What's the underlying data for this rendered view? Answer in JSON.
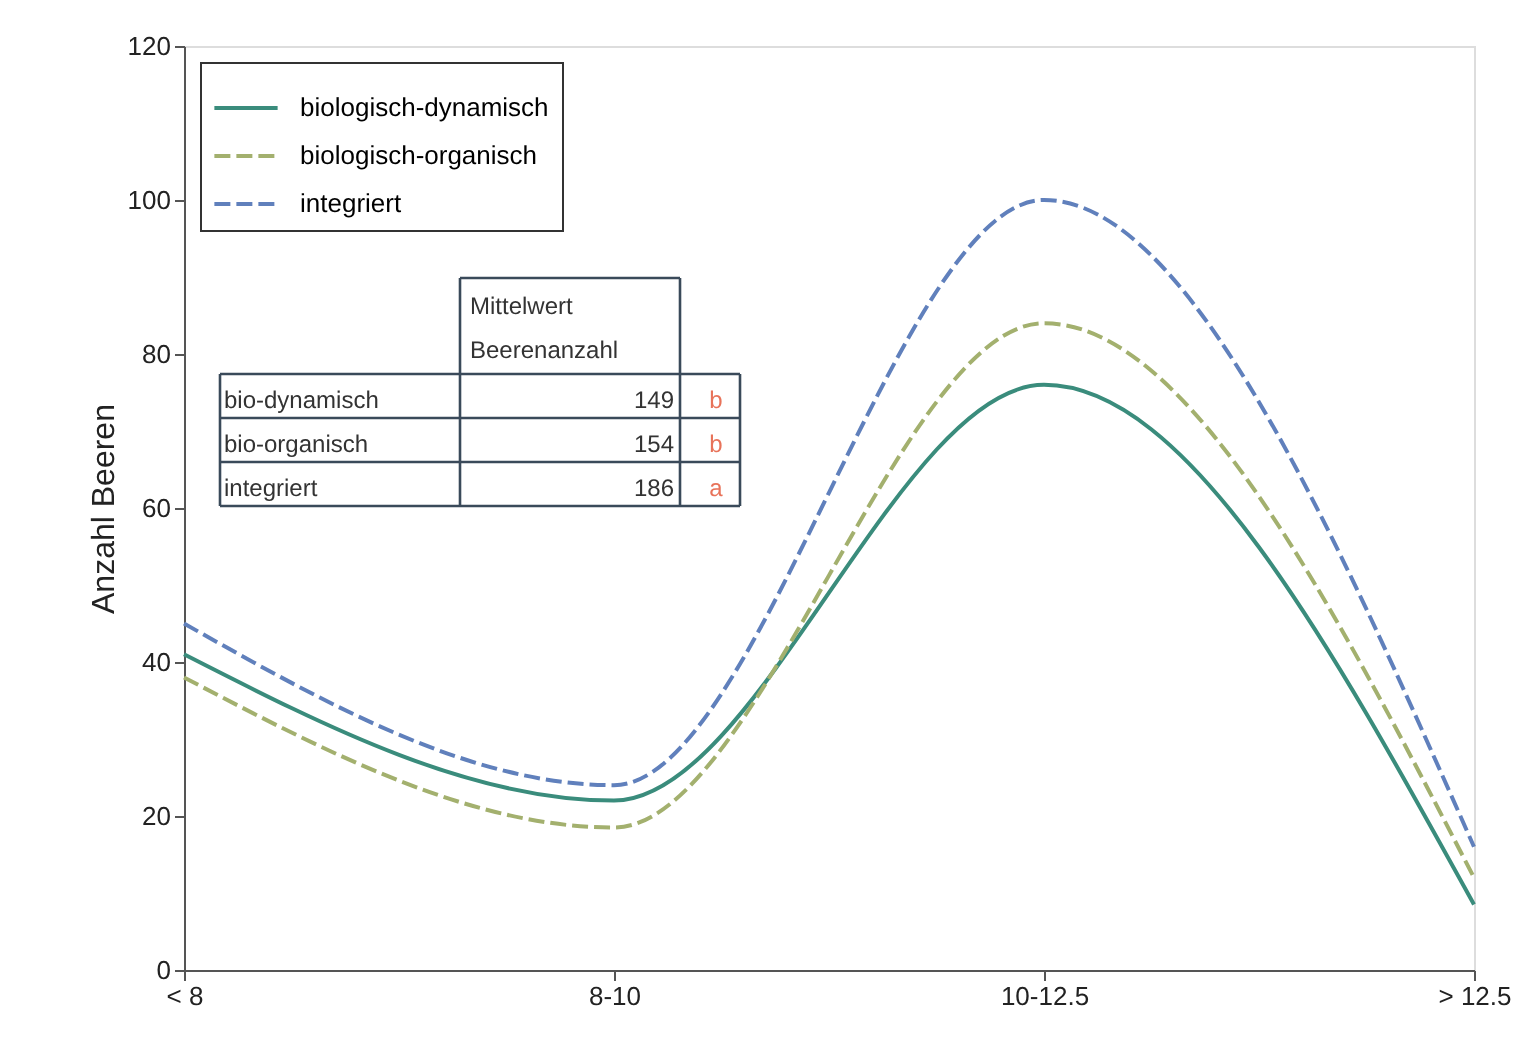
{
  "chart_data": {
    "type": "line",
    "ylabel": "Anzahl Beeren",
    "categories": [
      "< 8",
      "8-10",
      "10-12.5",
      "> 12.5"
    ],
    "series": [
      {
        "name": "biologisch-dynamisch",
        "color": "#3a8c7c",
        "line_style": "solid",
        "values": [
          41,
          22,
          76,
          8.5
        ]
      },
      {
        "name": "biologisch-organisch",
        "color": "#a3b06e",
        "line_style": "dashed",
        "values": [
          38,
          18.5,
          84,
          12
        ]
      },
      {
        "name": "integriert",
        "color": "#6080bc",
        "line_style": "dashed",
        "values": [
          45,
          24,
          100,
          16
        ]
      }
    ],
    "ylim": [
      0,
      120
    ],
    "yticks": [
      0,
      20,
      40,
      60,
      80,
      100,
      120
    ],
    "grid": false,
    "legend": "top left",
    "marker": "none",
    "annotations": [
      "Mittelwert",
      "Beerenanzahl",
      "bio-dynamisch",
      "149",
      "b",
      "bio-organisch",
      "154",
      "b",
      "integriert",
      "186",
      "a"
    ]
  }
}
